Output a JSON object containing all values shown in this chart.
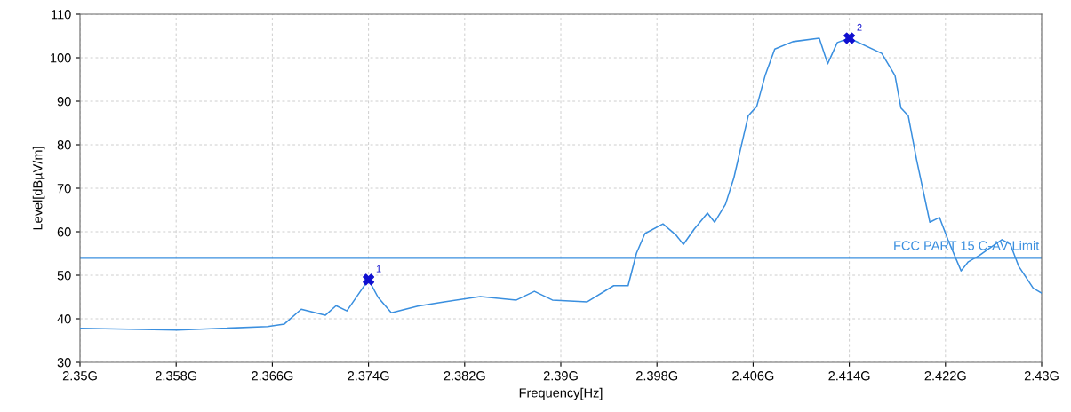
{
  "chart_data": {
    "type": "line",
    "xlabel": "Frequency[Hz]",
    "ylabel": "Level[dBµV/m]",
    "xlim": [
      2.35,
      2.43
    ],
    "ylim": [
      30,
      110
    ],
    "xticks": [
      {
        "value": 2.35,
        "label": "2.35G"
      },
      {
        "value": 2.358,
        "label": "2.358G"
      },
      {
        "value": 2.366,
        "label": "2.366G"
      },
      {
        "value": 2.374,
        "label": "2.374G"
      },
      {
        "value": 2.382,
        "label": "2.382G"
      },
      {
        "value": 2.39,
        "label": "2.39G"
      },
      {
        "value": 2.398,
        "label": "2.398G"
      },
      {
        "value": 2.406,
        "label": "2.406G"
      },
      {
        "value": 2.414,
        "label": "2.414G"
      },
      {
        "value": 2.422,
        "label": "2.422G"
      },
      {
        "value": 2.43,
        "label": "2.43G"
      }
    ],
    "yticks": [
      30,
      40,
      50,
      60,
      70,
      80,
      90,
      100,
      110
    ],
    "grid": true,
    "series": [
      {
        "color": "#3a8fdf",
        "marker": "none",
        "line_style": "solid",
        "x": [
          2.35,
          2.3581,
          2.3656,
          2.367,
          2.3684,
          2.3696,
          2.3704,
          2.3713,
          2.3722,
          2.374,
          2.3748,
          2.3759,
          2.3781,
          2.3803,
          2.3833,
          2.3863,
          2.3878,
          2.3893,
          2.3922,
          2.3944,
          2.3956,
          2.3963,
          2.397,
          2.3985,
          2.3996,
          2.4002,
          2.4011,
          2.4022,
          2.4028,
          2.4037,
          2.4044,
          2.4056,
          2.4063,
          2.407,
          2.4078,
          2.4093,
          2.4115,
          2.4122,
          2.413,
          2.414,
          2.4167,
          2.4178,
          2.4183,
          2.4189,
          2.4196,
          2.4207,
          2.4215,
          2.4222,
          2.4233,
          2.4239,
          2.4248,
          2.4256,
          2.4267,
          2.4274,
          2.4281,
          2.4293,
          2.43
        ],
        "values": [
          37.8,
          37.4,
          38.2,
          38.8,
          42.2,
          41.4,
          40.8,
          43,
          41.8,
          49,
          44.9,
          41.4,
          42.9,
          43.9,
          45.1,
          44.3,
          46.3,
          44.3,
          43.9,
          47.6,
          47.6,
          55.1,
          59.6,
          61.8,
          59.2,
          57.1,
          60.6,
          64.3,
          62.2,
          66.3,
          72.4,
          86.7,
          88.8,
          95.9,
          102,
          103.7,
          104.5,
          98.6,
          103.5,
          104.5,
          101,
          95.9,
          88.4,
          86.7,
          76.5,
          62.2,
          63.3,
          58.2,
          51,
          53.1,
          54.5,
          56.1,
          58.2,
          57.1,
          52,
          47,
          45.9
        ]
      },
      {
        "type": "scatter",
        "color": "#1010d0",
        "marker": "cross",
        "x": [
          2.374,
          2.414
        ],
        "values": [
          49,
          104.5
        ]
      }
    ],
    "ref_lines": [
      {
        "axis": "y",
        "value": 54,
        "label": "FCC PART 15 C-AV Limit",
        "color": "#3a8fdf",
        "line_style": "solid"
      }
    ],
    "annotations": [
      {
        "text": "1",
        "x": 2.374,
        "y": 49
      },
      {
        "text": "2",
        "x": 2.414,
        "y": 104.5
      }
    ]
  }
}
